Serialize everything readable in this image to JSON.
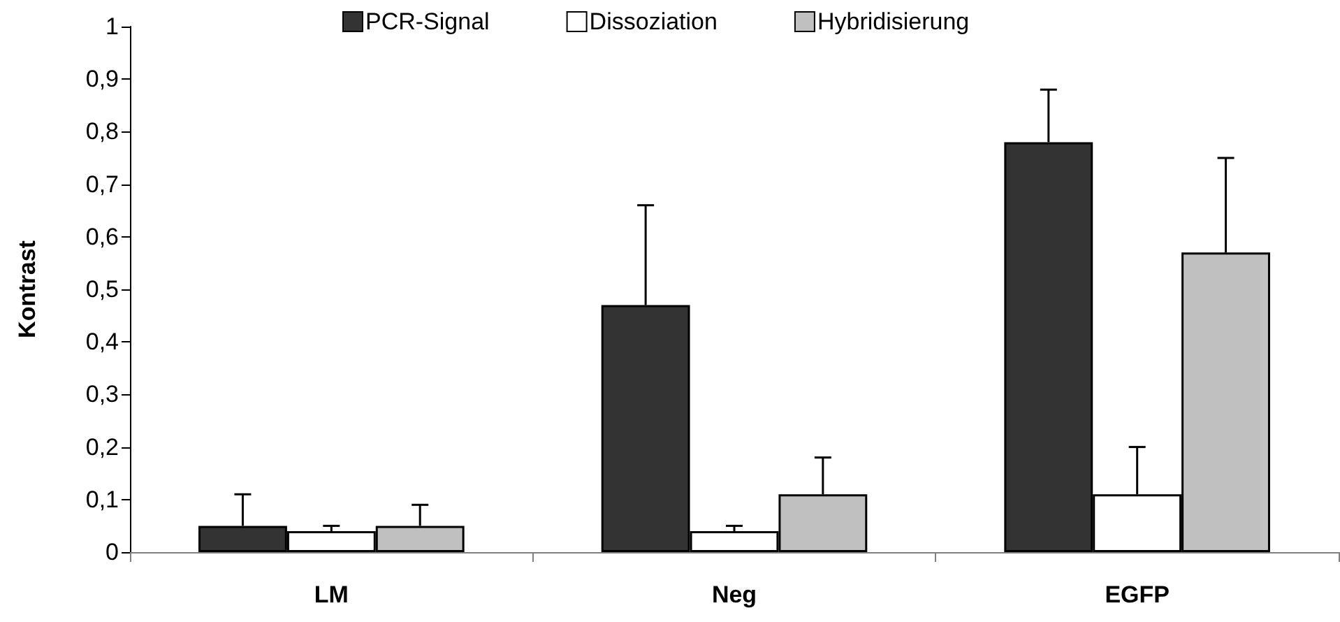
{
  "chart_data": {
    "type": "bar",
    "ylabel": "Kontrast",
    "categories": [
      "LM",
      "Neg",
      "EGFP"
    ],
    "series": [
      {
        "name": "PCR-Signal",
        "color": "#333333",
        "values": [
          0.05,
          0.47,
          0.78
        ],
        "errors": [
          [
            0.05,
            0.11
          ],
          [
            0.47,
            0.66
          ],
          [
            0.78,
            0.88
          ]
        ]
      },
      {
        "name": "Dissoziation",
        "color": "#ffffff",
        "values": [
          0.04,
          0.04,
          0.11
        ],
        "errors": [
          [
            0.04,
            0.05
          ],
          [
            0.04,
            0.05
          ],
          [
            0.11,
            0.2
          ]
        ]
      },
      {
        "name": "Hybridisierung",
        "color": "#c0c0c0",
        "values": [
          0.05,
          0.11,
          0.57
        ],
        "errors": [
          [
            0.05,
            0.09
          ],
          [
            0.11,
            0.18
          ],
          [
            0.57,
            0.75
          ]
        ]
      }
    ],
    "ylim": [
      0,
      1
    ],
    "yticks": [
      0,
      {
        "value": 0.1,
        "label": "0,1"
      },
      {
        "value": 0.2,
        "label": "0,2"
      },
      {
        "value": 0.3,
        "label": "0,3"
      },
      {
        "value": 0.4,
        "label": "0,4"
      },
      {
        "value": 0.5,
        "label": "0,5"
      },
      {
        "value": 0.6,
        "label": "0,6"
      },
      {
        "value": 0.7,
        "label": "0,7"
      },
      {
        "value": 0.8,
        "label": "0,8"
      },
      {
        "value": 0.9,
        "label": "0,9"
      },
      1
    ],
    "grid": false,
    "legend": "top"
  }
}
